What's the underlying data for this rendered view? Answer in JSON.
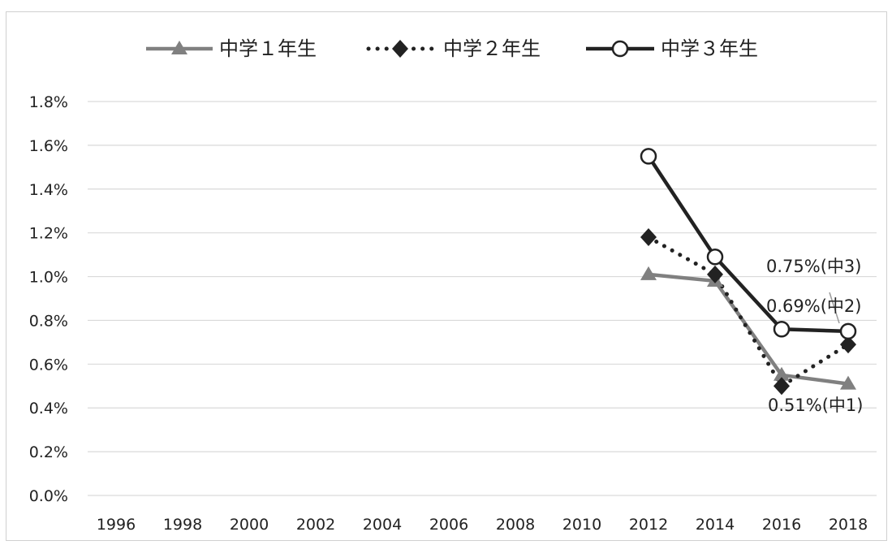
{
  "chart_data": {
    "type": "line",
    "title": "",
    "xlabel": "",
    "ylabel": "",
    "categories": [
      "1996",
      "1998",
      "2000",
      "2002",
      "2004",
      "2006",
      "2008",
      "2010",
      "2012",
      "2014",
      "2016",
      "2018"
    ],
    "y_ticks": [
      "0.0%",
      "0.2%",
      "0.4%",
      "0.6%",
      "0.8%",
      "1.0%",
      "1.2%",
      "1.4%",
      "1.6%",
      "1.8%"
    ],
    "ylim": [
      0,
      1.8
    ],
    "y_unit": "%",
    "grid": "horizontal",
    "legend_position": "top",
    "series": [
      {
        "name": "中学１年生",
        "color": "#808080",
        "line_style": "solid",
        "marker": "triangle",
        "values": [
          null,
          null,
          null,
          null,
          null,
          null,
          null,
          null,
          1.01,
          0.98,
          0.55,
          0.51
        ]
      },
      {
        "name": "中学２年生",
        "color": "#222222",
        "line_style": "dotted",
        "marker": "diamond",
        "values": [
          null,
          null,
          null,
          null,
          null,
          null,
          null,
          null,
          1.18,
          1.01,
          0.5,
          0.69
        ]
      },
      {
        "name": "中学３年生",
        "color": "#222222",
        "line_style": "solid",
        "marker": "open-circle",
        "values": [
          null,
          null,
          null,
          null,
          null,
          null,
          null,
          null,
          1.55,
          1.09,
          0.76,
          0.75
        ]
      }
    ],
    "annotations": [
      {
        "text": "0.75%(中3)",
        "series": 2,
        "x": "2018",
        "y": 0.75
      },
      {
        "text": "0.69%(中2)",
        "series": 1,
        "x": "2018",
        "y": 0.69
      },
      {
        "text": "0.51%(中1)",
        "series": 0,
        "x": "2018",
        "y": 0.51
      }
    ]
  }
}
